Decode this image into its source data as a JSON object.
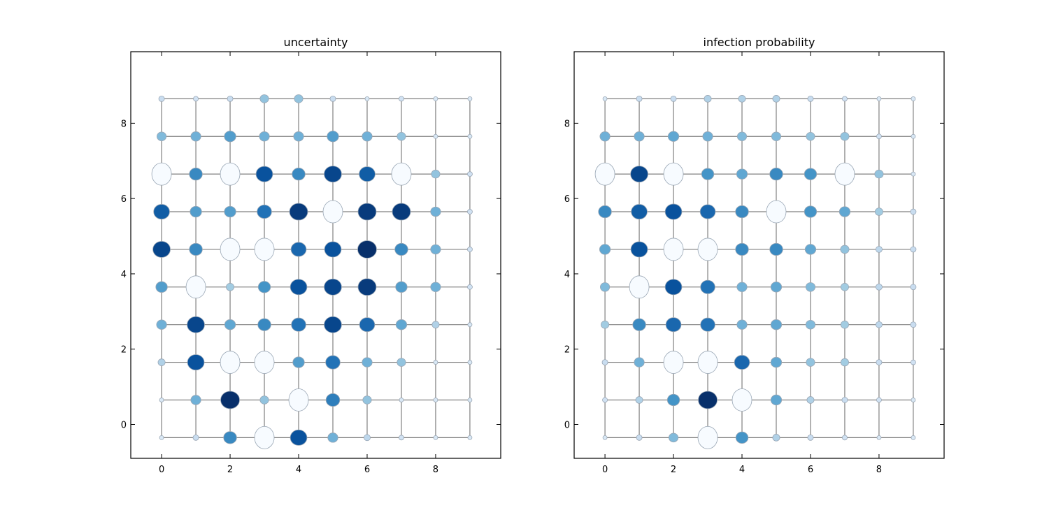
{
  "colors": {
    "grid_line": "#808080",
    "node_edge": "#9aa7b5",
    "frame": "#000000",
    "colormap": "Blues"
  },
  "chart_data": [
    {
      "type": "scatter",
      "subtype": "grid-graph-bubble",
      "title": "uncertainty",
      "xlim": [
        -0.9,
        9.9
      ],
      "ylim": [
        -0.9,
        9.9
      ],
      "xticks": [
        0,
        2,
        4,
        6,
        8
      ],
      "yticks": [
        0,
        2,
        4,
        6,
        8
      ],
      "grid": "10x10 lattice",
      "values": [
        [
          0.1,
          0.05,
          0.1,
          0.3,
          0.3,
          0.1,
          0.0,
          0.05,
          0.0,
          0.0
        ],
        [
          0.35,
          0.4,
          0.5,
          0.4,
          0.4,
          0.5,
          0.4,
          0.3,
          0.0,
          0.0
        ],
        [
          -1,
          0.6,
          -1,
          0.85,
          0.6,
          0.9,
          0.8,
          -1,
          0.3,
          0.05
        ],
        [
          0.8,
          0.5,
          0.5,
          0.7,
          0.95,
          -1,
          0.95,
          0.95,
          0.4,
          0.05
        ],
        [
          0.9,
          0.6,
          -1,
          -1,
          0.75,
          0.85,
          1.0,
          0.6,
          0.4,
          0.05
        ],
        [
          0.5,
          -1,
          0.25,
          0.55,
          0.85,
          0.9,
          0.95,
          0.5,
          0.4,
          0.05
        ],
        [
          0.4,
          0.9,
          0.45,
          0.6,
          0.7,
          0.9,
          0.75,
          0.45,
          0.2,
          0.0
        ],
        [
          0.2,
          0.85,
          -1,
          -1,
          0.5,
          0.7,
          0.4,
          0.3,
          0.0,
          0.0
        ],
        [
          0.0,
          0.4,
          1.0,
          0.3,
          -1,
          0.65,
          0.3,
          0.0,
          0.0,
          0.0
        ],
        [
          0.0,
          0.1,
          0.6,
          -1,
          0.85,
          0.4,
          0.15,
          0.05,
          0.0,
          0.0
        ]
      ]
    },
    {
      "type": "scatter",
      "subtype": "grid-graph-bubble",
      "title": "infection probability",
      "xlim": [
        -0.9,
        9.9
      ],
      "ylim": [
        -0.9,
        9.9
      ],
      "xticks": [
        0,
        2,
        4,
        6,
        8
      ],
      "yticks": [
        0,
        2,
        4,
        6,
        8
      ],
      "grid": "10x10 lattice",
      "values": [
        [
          0.0,
          0.1,
          0.1,
          0.2,
          0.2,
          0.2,
          0.1,
          0.05,
          0.0,
          0.0
        ],
        [
          0.4,
          0.4,
          0.45,
          0.4,
          0.35,
          0.35,
          0.3,
          0.3,
          0.05,
          0.0
        ],
        [
          -1,
          0.9,
          -1,
          0.55,
          0.45,
          0.6,
          0.55,
          -1,
          0.3,
          0.0
        ],
        [
          0.6,
          0.8,
          0.85,
          0.75,
          0.6,
          -1,
          0.55,
          0.45,
          0.25,
          0.1
        ],
        [
          0.45,
          0.85,
          -1,
          -1,
          0.6,
          0.6,
          0.45,
          0.3,
          0.15,
          0.1
        ],
        [
          0.35,
          -1,
          0.85,
          0.7,
          0.4,
          0.45,
          0.35,
          0.25,
          0.15,
          0.1
        ],
        [
          0.25,
          0.6,
          0.75,
          0.7,
          0.4,
          0.45,
          0.35,
          0.25,
          0.15,
          0.1
        ],
        [
          0.1,
          0.4,
          -1,
          -1,
          0.75,
          0.45,
          0.3,
          0.25,
          0.1,
          0.05
        ],
        [
          0.05,
          0.2,
          0.55,
          1.0,
          -1,
          0.45,
          0.2,
          0.1,
          0.05,
          0.0
        ],
        [
          0.0,
          0.1,
          0.35,
          -1,
          0.55,
          0.2,
          0.1,
          0.05,
          0.0,
          0.0
        ]
      ]
    }
  ]
}
